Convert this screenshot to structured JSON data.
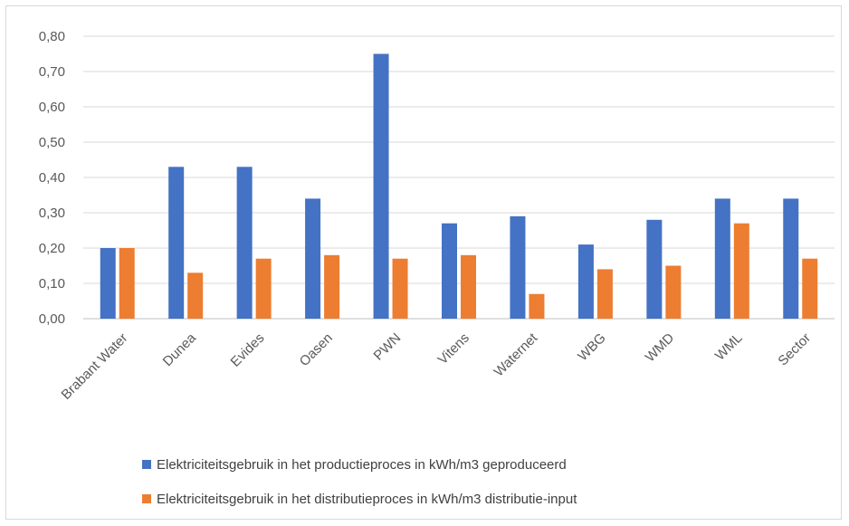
{
  "chart_data": {
    "type": "bar",
    "title": "",
    "xlabel": "",
    "ylabel": "",
    "ylim": [
      0,
      0.8
    ],
    "y_ticks": [
      "0,00",
      "0,10",
      "0,20",
      "0,30",
      "0,40",
      "0,50",
      "0,60",
      "0,70",
      "0,80"
    ],
    "grid": true,
    "legend_position": "bottom",
    "categories": [
      "Brabant Water",
      "Dunea",
      "Evides",
      "Oasen",
      "PWN",
      "Vitens",
      "Waternet",
      "WBG",
      "WMD",
      "WML",
      "Sector"
    ],
    "series": [
      {
        "name": "Elektriciteitsgebruik in het productieproces in kWh/m3 geproduceerd",
        "color": "#4472c4",
        "values": [
          0.2,
          0.43,
          0.43,
          0.34,
          0.75,
          0.27,
          0.29,
          0.21,
          0.28,
          0.34,
          0.34
        ]
      },
      {
        "name": "Elektriciteitsgebruik in het distributieproces in kWh/m3 distributie-input",
        "color": "#ed7d31",
        "values": [
          0.2,
          0.13,
          0.17,
          0.18,
          0.17,
          0.18,
          0.07,
          0.14,
          0.15,
          0.27,
          0.17
        ]
      }
    ]
  }
}
